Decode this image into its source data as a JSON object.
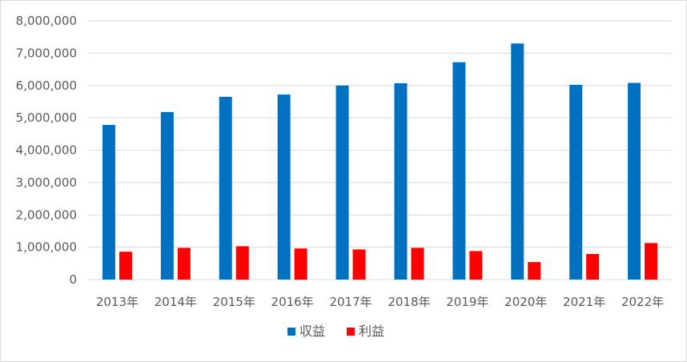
{
  "chart_data": {
    "type": "bar",
    "title": "",
    "xlabel": "",
    "ylabel": "",
    "categories": [
      "2013年",
      "2014年",
      "2015年",
      "2016年",
      "2017年",
      "2018年",
      "2019年",
      "2020年",
      "2021年",
      "2022年"
    ],
    "series": [
      {
        "name": "収益",
        "color": "#0070c0",
        "values": [
          4780000,
          5180000,
          5650000,
          5720000,
          6000000,
          6070000,
          6720000,
          7300000,
          6020000,
          6080000
        ]
      },
      {
        "name": "利益",
        "color": "#ff0000",
        "values": [
          860000,
          980000,
          1030000,
          960000,
          930000,
          980000,
          880000,
          540000,
          790000,
          1130000
        ]
      }
    ],
    "ylim": [
      0,
      8000000
    ],
    "y_ticks": [
      "0",
      "1,000,000",
      "2,000,000",
      "3,000,000",
      "4,000,000",
      "5,000,000",
      "6,000,000",
      "7,000,000",
      "8,000,000"
    ],
    "y_tick_values": [
      0,
      1000000,
      2000000,
      3000000,
      4000000,
      5000000,
      6000000,
      7000000,
      8000000
    ],
    "grid": true,
    "legend_position": "bottom"
  }
}
